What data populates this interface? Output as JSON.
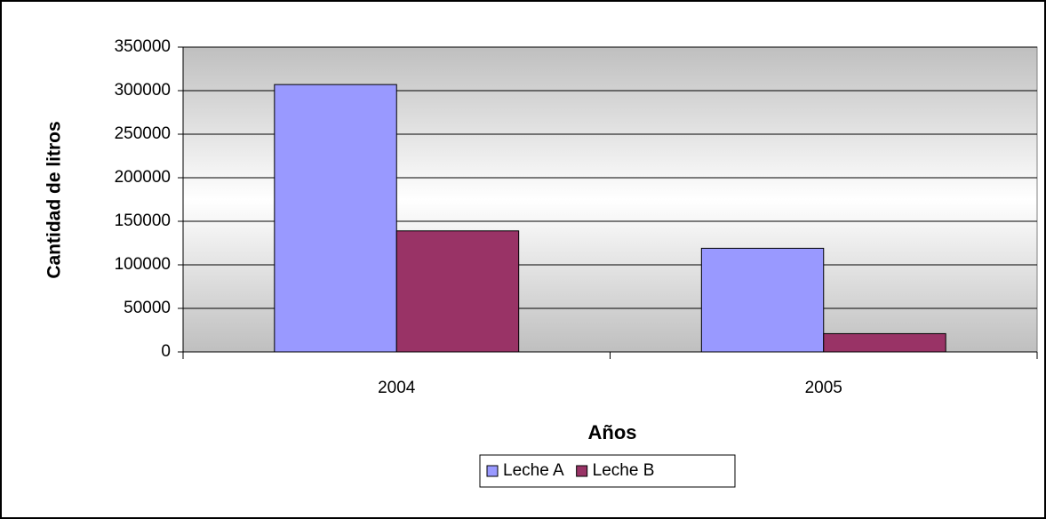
{
  "chart_data": {
    "type": "bar",
    "categories": [
      "2004",
      "2005"
    ],
    "series": [
      {
        "name": "Leche A",
        "color": "#9999ff",
        "values": [
          307000,
          119000
        ]
      },
      {
        "name": "Leche B",
        "color": "#993366",
        "values": [
          139000,
          21000
        ]
      }
    ],
    "xlabel": "Años",
    "ylabel": "Cantidad de litros",
    "ylim": [
      0,
      350000
    ],
    "yticks": [
      0,
      50000,
      100000,
      150000,
      200000,
      250000,
      300000,
      350000
    ],
    "grid": true,
    "legend": "bottom"
  }
}
